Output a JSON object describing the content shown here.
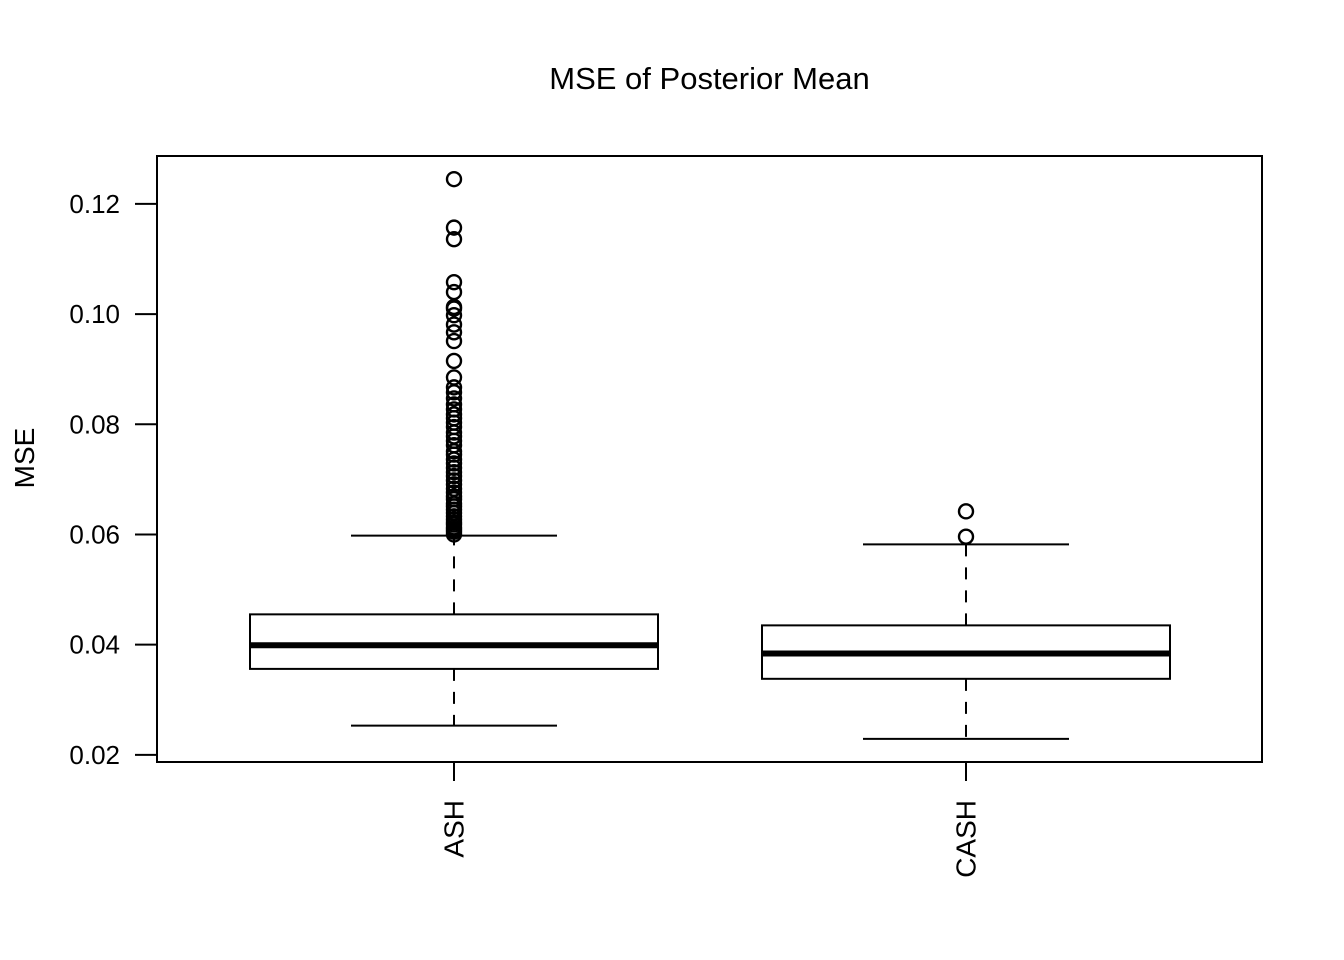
{
  "chart_data": {
    "type": "boxplot",
    "title": "MSE of Posterior Mean",
    "ylabel": "MSE",
    "xlabel": "",
    "categories": [
      "ASH",
      "CASH"
    ],
    "yticks": [
      0.02,
      0.04,
      0.06,
      0.08,
      0.1,
      0.12
    ],
    "ylim": [
      0.0187,
      0.1287
    ],
    "grid": false,
    "legend": null,
    "colors": {
      "stroke": "#000000",
      "background": "#ffffff",
      "box_fill": "#ffffff"
    },
    "series": [
      {
        "name": "ASH",
        "whisker_low": 0.0253,
        "q1": 0.0356,
        "median": 0.0399,
        "q3": 0.0455,
        "whisker_high": 0.0598,
        "outliers": [
          0.06,
          0.0605,
          0.0609,
          0.0613,
          0.0618,
          0.0622,
          0.0627,
          0.0633,
          0.0639,
          0.0645,
          0.0651,
          0.0656,
          0.0664,
          0.0669,
          0.0676,
          0.0683,
          0.0691,
          0.0698,
          0.0706,
          0.0713,
          0.0721,
          0.0729,
          0.0736,
          0.0745,
          0.0751,
          0.0762,
          0.077,
          0.0778,
          0.0785,
          0.0795,
          0.0803,
          0.0811,
          0.0818,
          0.0827,
          0.0836,
          0.0847,
          0.0858,
          0.0867,
          0.0885,
          0.0915,
          0.0951,
          0.0967,
          0.0981,
          0.0998,
          0.101,
          0.1013,
          0.104,
          0.1058,
          0.1136,
          0.1157,
          0.1245
        ]
      },
      {
        "name": "CASH",
        "whisker_low": 0.0229,
        "q1": 0.0338,
        "median": 0.0384,
        "q3": 0.0435,
        "whisker_high": 0.0582,
        "outliers": [
          0.0596,
          0.0642
        ]
      }
    ]
  }
}
